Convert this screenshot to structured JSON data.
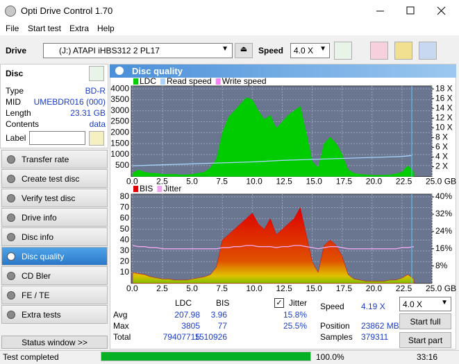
{
  "window": {
    "title": "Opti Drive Control 1.70"
  },
  "menu": [
    "File",
    "Start test",
    "Extra",
    "Help"
  ],
  "toolbar": {
    "drive_label": "Drive",
    "drive": "(J:)  ATAPI iHBS312  2 PL17",
    "speed_label": "Speed",
    "speed": "4.0 X"
  },
  "disc": {
    "title": "Disc",
    "fields": [
      [
        "Type",
        "BD-R"
      ],
      [
        "MID",
        "UMEBDR016 (000)"
      ],
      [
        "Length",
        "23.31 GB"
      ],
      [
        "Contents",
        "data"
      ]
    ],
    "label": "Label"
  },
  "nav": {
    "items": [
      "Transfer rate",
      "Create test disc",
      "Verify test disc",
      "Drive info",
      "Disc info",
      "Disc quality",
      "CD Bler",
      "FE / TE",
      "Extra tests"
    ],
    "active": 5
  },
  "status_window": "Status window >>",
  "panel_title": "Disc quality",
  "charts": [
    {
      "type": "area",
      "xlim": [
        0,
        25
      ],
      "xticks": [
        {
          "value": 0,
          "label": "0.0"
        },
        2.5,
        {
          "value": 5,
          "label": "5.0"
        },
        7.5,
        {
          "value": 10,
          "label": "10.0"
        },
        12.5,
        {
          "value": 15,
          "label": "15.0"
        },
        17.5,
        {
          "value": 20,
          "label": "20.0"
        },
        22.5,
        {
          "value": 25,
          "label": "25.0 GB"
        }
      ],
      "ylim": [
        0,
        4130
      ],
      "yticks": [
        500,
        1000,
        1500,
        2000,
        2500,
        3000,
        3500,
        4000
      ],
      "y2lim": [
        0,
        18.6
      ],
      "y2ticks": [
        {
          "value": 2,
          "label": "2 X"
        },
        {
          "value": 4,
          "label": "4 X"
        },
        {
          "value": 6,
          "label": "6 X"
        },
        {
          "value": 8,
          "label": "8 X"
        },
        {
          "value": 10,
          "label": "10 X"
        },
        {
          "value": 12,
          "label": "12 X"
        },
        {
          "value": 14,
          "label": "14 X"
        },
        {
          "value": 16,
          "label": "16 X"
        },
        {
          "value": 18,
          "label": "18 X"
        }
      ],
      "grid": true,
      "x": [
        0,
        0.5,
        1,
        1.5,
        2,
        2.5,
        3,
        3.5,
        4,
        4.5,
        5,
        5.5,
        6,
        6.5,
        7,
        7.5,
        8,
        8.5,
        9,
        9.5,
        10,
        10.5,
        11,
        11.5,
        12,
        12.5,
        13,
        13.5,
        14,
        14.5,
        15,
        15.5,
        16,
        16.5,
        17,
        17.5,
        18,
        18.5,
        19,
        19.5,
        20,
        20.5,
        21,
        21.5,
        22,
        22.5,
        23,
        23.5
      ],
      "series": [
        {
          "name": "LDC",
          "color": "#00cc00",
          "values": [
            150,
            300,
            200,
            150,
            150,
            100,
            100,
            100,
            80,
            80,
            100,
            150,
            200,
            400,
            800,
            2000,
            2700,
            3000,
            3300,
            3600,
            3500,
            3000,
            2600,
            2800,
            2200,
            2500,
            2800,
            3000,
            3200,
            2000,
            700,
            400,
            1500,
            1800,
            1500,
            1000,
            300,
            150,
            100,
            80,
            60,
            60,
            60,
            80,
            120,
            200,
            500,
            200
          ]
        },
        {
          "name": "Read speed",
          "color": "#a8d4ff",
          "axis": "y2",
          "type": "line",
          "x": [
            0,
            2.5,
            5,
            7.5,
            10,
            12.5,
            15,
            17.5,
            20,
            22.5,
            23.3
          ],
          "values": [
            2.2,
            2.4,
            2.6,
            2.8,
            3.0,
            3.3,
            3.5,
            3.7,
            3.9,
            4.1,
            4.3
          ]
        },
        {
          "name": "Write speed",
          "color": "#ff80ff"
        }
      ]
    },
    {
      "type": "area",
      "xlim": [
        0,
        25
      ],
      "xticks": [
        {
          "value": 0,
          "label": "0.0"
        },
        2.5,
        {
          "value": 5,
          "label": "5.0"
        },
        7.5,
        {
          "value": 10,
          "label": "10.0"
        },
        12.5,
        {
          "value": 15,
          "label": "15.0"
        },
        17.5,
        {
          "value": 20,
          "label": "20.0"
        },
        22.5,
        {
          "value": 25,
          "label": "25.0 GB"
        }
      ],
      "ylim": [
        0,
        82.5
      ],
      "yticks": [
        10,
        20,
        30,
        40,
        50,
        60,
        70,
        80
      ],
      "y2lim": [
        0,
        41.3
      ],
      "y2ticks": [
        {
          "value": 8,
          "label": "8%"
        },
        {
          "value": 16,
          "label": "16%"
        },
        {
          "value": 24,
          "label": "24%"
        },
        {
          "value": 32,
          "label": "32%"
        },
        {
          "value": 40,
          "label": "40%"
        }
      ],
      "grid": true,
      "x": [
        0,
        0.5,
        1,
        1.5,
        2,
        2.5,
        3,
        3.5,
        4,
        4.5,
        5,
        5.5,
        6,
        6.5,
        7,
        7.5,
        8,
        8.5,
        9,
        9.5,
        10,
        10.5,
        11,
        11.5,
        12,
        12.5,
        13,
        13.5,
        14,
        14.5,
        15,
        15.5,
        16,
        16.5,
        17,
        17.5,
        18,
        18.5,
        19,
        19.5,
        20,
        20.5,
        21,
        21.5,
        22,
        22.5,
        23,
        23.5
      ],
      "series": [
        {
          "name": "BIS",
          "color": "#dd0000",
          "values": [
            10,
            9,
            8,
            6,
            5,
            4,
            4,
            3,
            3,
            3,
            4,
            5,
            6,
            8,
            15,
            40,
            45,
            50,
            55,
            60,
            65,
            55,
            50,
            60,
            45,
            50,
            55,
            60,
            70,
            45,
            20,
            10,
            35,
            40,
            35,
            25,
            8,
            4,
            3,
            2,
            2,
            2,
            2,
            3,
            3,
            5,
            8,
            4
          ]
        },
        {
          "name": "Jitter",
          "color": "#f0a8f0",
          "axis": "y2",
          "type": "line",
          "values": [
            17.5,
            17,
            17,
            16.5,
            16.5,
            16,
            16,
            16,
            16,
            16,
            16,
            16,
            16,
            16,
            16,
            16.5,
            16.5,
            17,
            17,
            17.5,
            17.5,
            17,
            17,
            17,
            16.5,
            17,
            17,
            17.5,
            17.5,
            17,
            16.5,
            16,
            16.5,
            17,
            17,
            16.5,
            16,
            16,
            16,
            16,
            16,
            16,
            16,
            16,
            16,
            16.5,
            16.5,
            17
          ]
        }
      ]
    }
  ],
  "stats": {
    "columns": [
      "LDC",
      "BIS"
    ],
    "rows": [
      [
        "Avg",
        "207.98",
        "3.96"
      ],
      [
        "Max",
        "3805",
        "77"
      ],
      [
        "Total",
        "79407715",
        "1510926"
      ]
    ],
    "jitter": {
      "label": "Jitter",
      "values": [
        "15.8%",
        "25.5%"
      ]
    },
    "info": [
      [
        "Speed",
        "4.19 X"
      ],
      [
        "Position",
        "23862 MB"
      ],
      [
        "Samples",
        "379311"
      ]
    ],
    "speed_select": "4.0 X",
    "buttons": [
      "Start full",
      "Start part"
    ]
  },
  "status": {
    "text": "Test completed",
    "progress": {
      "value": 100,
      "label": "100.0%"
    },
    "time": "33:16"
  }
}
